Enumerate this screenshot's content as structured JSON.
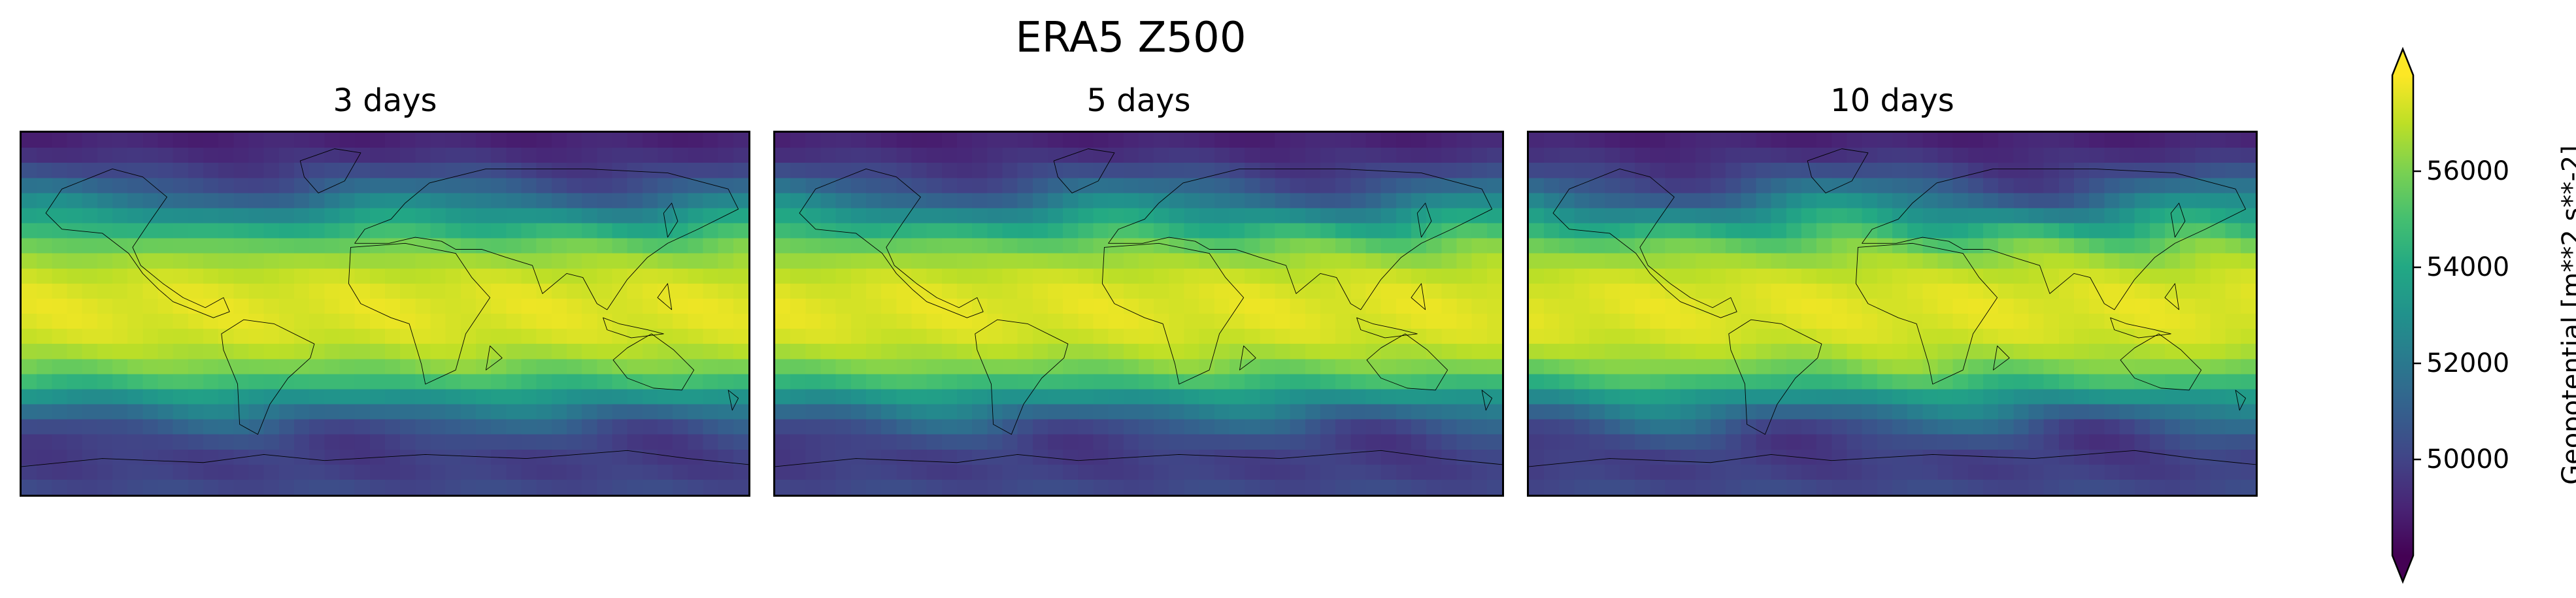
{
  "figure": {
    "title": "ERA5 Z500"
  },
  "panels": [
    {
      "title": "3 days",
      "variant": 0
    },
    {
      "title": "5 days",
      "variant": 1
    },
    {
      "title": "10 days",
      "variant": 2
    }
  ],
  "colorbar": {
    "label": "Geopotential [m**2 s**-2]",
    "colormap": "viridis",
    "extend": "both",
    "vmin": 48000,
    "vmax": 58000,
    "ticks": [
      {
        "value": 50000,
        "label": "50000"
      },
      {
        "value": 52000,
        "label": "52000"
      },
      {
        "value": 54000,
        "label": "54000"
      },
      {
        "value": 56000,
        "label": "56000"
      }
    ]
  },
  "chart_data": {
    "type": "heatmap",
    "title": "ERA5 Z500",
    "variable": "Geopotential at 500 hPa",
    "units": "m**2 s**-2",
    "projection": "PlateCarree",
    "lon_range": [
      -180,
      180
    ],
    "lat_range": [
      -90,
      90
    ],
    "lead_times": [
      "3 days",
      "5 days",
      "10 days"
    ],
    "zonal_profile": {
      "lat": [
        90,
        75,
        60,
        45,
        30,
        15,
        0,
        -15,
        -30,
        -45,
        -60,
        -75,
        -90
      ],
      "value": [
        48800,
        49600,
        51300,
        53800,
        56300,
        57400,
        57600,
        57200,
        55600,
        52400,
        50200,
        49700,
        50300
      ]
    },
    "colorbar_range": [
      48000,
      58000
    ],
    "colorbar_ticks": [
      50000,
      52000,
      54000,
      56000
    ]
  }
}
